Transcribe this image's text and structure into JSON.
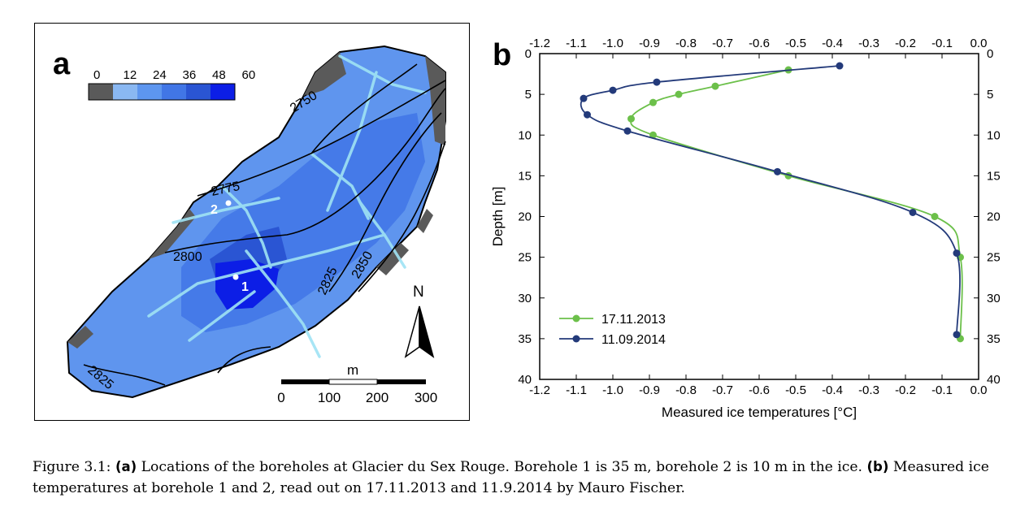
{
  "panel_a": {
    "letter": "a",
    "colorbar": {
      "ticks": [
        "0",
        "12",
        "24",
        "36",
        "48",
        "60"
      ],
      "colors": [
        "#5a5a5a",
        "#8ab8f2",
        "#5d96ef",
        "#4176e6",
        "#2a55d3",
        "#0c1ee6"
      ]
    },
    "contours": [
      "2750",
      "2775",
      "2800",
      "2825",
      "2850",
      "2825"
    ],
    "boreholes": [
      "1",
      "2"
    ],
    "north_label": "N",
    "scale": {
      "unit": "m",
      "ticks": [
        "0",
        "100",
        "200",
        "300"
      ]
    }
  },
  "chart_data": {
    "type": "line",
    "letter": "b",
    "xlabel": "Measured ice temperatures [°C]",
    "ylabel": "Depth [m]",
    "xlim": [
      -1.2,
      0.0
    ],
    "ylim": [
      40,
      0
    ],
    "x_ticks": [
      "-1.2",
      "-1.1",
      "-1.0",
      "-0.9",
      "-0.8",
      "-0.7",
      "-0.6",
      "-0.5",
      "-0.4",
      "-0.3",
      "-0.2",
      "-0.1",
      "0.0"
    ],
    "y_ticks": [
      "0",
      "5",
      "10",
      "15",
      "20",
      "25",
      "30",
      "35",
      "40"
    ],
    "legend_position": "bottom-left",
    "series": [
      {
        "name": "17.11.2013",
        "color": "#6cc04a",
        "points": [
          [
            -0.52,
            2
          ],
          [
            -0.72,
            4
          ],
          [
            -0.82,
            5
          ],
          [
            -0.89,
            6
          ],
          [
            -0.95,
            8
          ],
          [
            -0.89,
            10
          ],
          [
            -0.52,
            15
          ],
          [
            -0.12,
            20
          ],
          [
            -0.05,
            25
          ],
          [
            -0.05,
            35
          ]
        ]
      },
      {
        "name": "11.09.2014",
        "color": "#233a7a",
        "points": [
          [
            -0.38,
            1.5
          ],
          [
            -0.88,
            3.5
          ],
          [
            -1.0,
            4.5
          ],
          [
            -1.08,
            5.5
          ],
          [
            -1.07,
            7.5
          ],
          [
            -0.96,
            9.5
          ],
          [
            -0.55,
            14.5
          ],
          [
            -0.18,
            19.5
          ],
          [
            -0.06,
            24.5
          ],
          [
            -0.06,
            34.5
          ]
        ]
      }
    ]
  },
  "caption": {
    "prefix": "Figure 3.1: ",
    "a_label": "(a)",
    "a_text": " Locations of the boreholes at Glacier du Sex Rouge. Borehole 1 is 35 m, borehole 2 is 10 m in the ice. ",
    "b_label": "(b)",
    "b_text": " Measured ice temperatures at borehole 1 and 2, read out on 17.11.2013 and 11.9.2014 by Mauro Fischer."
  }
}
